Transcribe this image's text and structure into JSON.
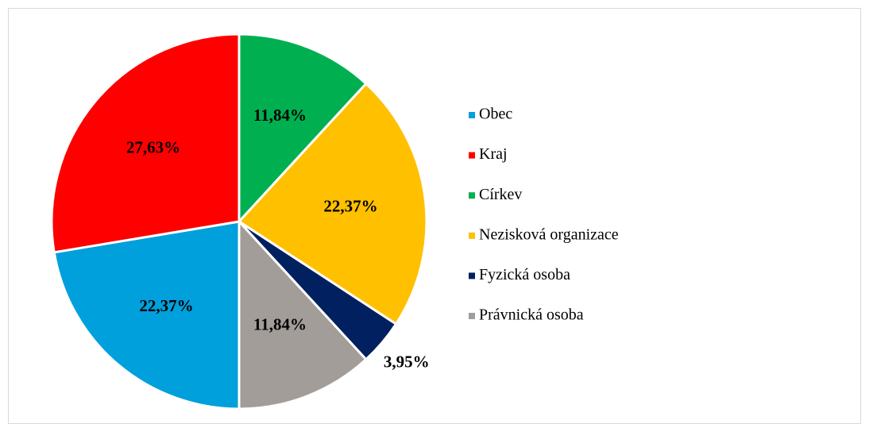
{
  "chart_data": {
    "type": "pie",
    "categories": [
      "Obec",
      "Kraj",
      "Církev",
      "Nezisková organizace",
      "Fyzická osoba",
      "Právnická osoba"
    ],
    "values": [
      22.37,
      27.63,
      11.84,
      22.37,
      3.95,
      11.84
    ],
    "value_labels": [
      "22,37%",
      "27,63%",
      "11,84%",
      "22,37%",
      "3,95%",
      "11,84%"
    ],
    "colors": [
      "#00a0dc",
      "#ff0000",
      "#00b050",
      "#ffc000",
      "#002060",
      "#a29d99"
    ],
    "legend": "right"
  }
}
